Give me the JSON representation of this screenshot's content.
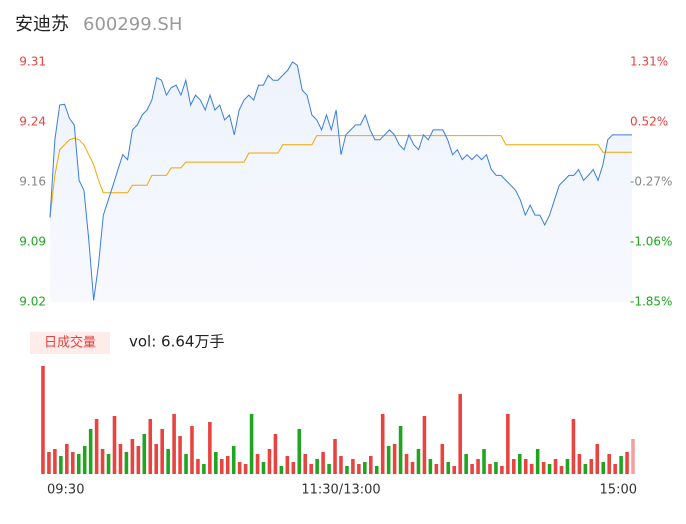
{
  "header": {
    "name": "安迪苏",
    "code": "600299.SH"
  },
  "chart_data": [
    {
      "type": "line",
      "x": [
        0,
        2,
        4,
        6,
        8,
        10,
        12,
        14,
        16,
        18,
        20,
        22,
        24,
        26,
        28,
        30,
        32,
        34,
        36,
        38,
        40,
        42,
        44,
        46,
        48,
        50,
        52,
        54,
        56,
        58,
        60,
        62,
        64,
        66,
        68,
        70,
        72,
        74,
        76,
        78,
        80,
        82,
        84,
        86,
        88,
        90,
        92,
        94,
        96,
        98,
        100,
        102,
        104,
        106,
        108,
        110,
        112,
        114,
        116,
        118,
        120,
        122,
        124,
        126,
        128,
        130,
        132,
        134,
        136,
        138,
        140,
        142,
        144,
        146,
        148,
        150,
        152,
        154,
        156,
        158,
        160,
        162,
        164,
        166,
        168,
        170,
        172,
        174,
        176,
        178,
        180,
        182,
        184,
        186,
        188,
        190,
        192,
        194,
        196,
        198,
        200,
        202,
        204,
        206,
        208,
        210,
        212,
        214,
        216,
        218,
        220,
        222,
        224,
        226,
        228,
        230,
        232,
        234,
        236,
        238,
        240
      ],
      "series": [
        {
          "color": "#3b7ddd",
          "values": [
            9.122,
            9.216,
            9.258,
            9.259,
            9.242,
            9.234,
            9.167,
            9.155,
            9.095,
            9.022,
            9.065,
            9.125,
            9.143,
            9.161,
            9.18,
            9.198,
            9.192,
            9.228,
            9.234,
            9.246,
            9.252,
            9.264,
            9.291,
            9.288,
            9.27,
            9.279,
            9.282,
            9.27,
            9.288,
            9.258,
            9.27,
            9.264,
            9.252,
            9.27,
            9.252,
            9.258,
            9.24,
            9.246,
            9.222,
            9.252,
            9.264,
            9.27,
            9.264,
            9.282,
            9.282,
            9.294,
            9.288,
            9.288,
            9.294,
            9.3,
            9.31,
            9.306,
            9.276,
            9.27,
            9.246,
            9.24,
            9.228,
            9.246,
            9.228,
            9.252,
            9.198,
            9.222,
            9.228,
            9.234,
            9.234,
            9.246,
            9.228,
            9.216,
            9.216,
            9.222,
            9.228,
            9.222,
            9.21,
            9.204,
            9.222,
            9.21,
            9.204,
            9.222,
            9.216,
            9.228,
            9.228,
            9.228,
            9.216,
            9.198,
            9.204,
            9.192,
            9.198,
            9.192,
            9.198,
            9.192,
            9.198,
            9.18,
            9.173,
            9.173,
            9.167,
            9.161,
            9.155,
            9.143,
            9.125,
            9.137,
            9.125,
            9.125,
            9.113,
            9.125,
            9.143,
            9.161,
            9.167,
            9.173,
            9.173,
            9.18,
            9.167,
            9.173,
            9.18,
            9.167,
            9.186,
            9.216,
            9.222,
            9.222,
            9.222,
            9.222,
            9.222
          ]
        },
        {
          "color": "#f0a800",
          "values": [
            9.122,
            9.173,
            9.204,
            9.21,
            9.216,
            9.218,
            9.216,
            9.21,
            9.198,
            9.186,
            9.167,
            9.152,
            9.152,
            9.152,
            9.152,
            9.152,
            9.152,
            9.161,
            9.161,
            9.161,
            9.161,
            9.173,
            9.173,
            9.173,
            9.173,
            9.182,
            9.182,
            9.182,
            9.189,
            9.189,
            9.189,
            9.189,
            9.189,
            9.189,
            9.189,
            9.189,
            9.189,
            9.189,
            9.189,
            9.189,
            9.189,
            9.2,
            9.2,
            9.2,
            9.2,
            9.2,
            9.2,
            9.2,
            9.21,
            9.21,
            9.21,
            9.21,
            9.21,
            9.21,
            9.21,
            9.221,
            9.221,
            9.221,
            9.221,
            9.221,
            9.221,
            9.221,
            9.221,
            9.221,
            9.221,
            9.221,
            9.221,
            9.221,
            9.221,
            9.221,
            9.221,
            9.221,
            9.221,
            9.221,
            9.221,
            9.221,
            9.221,
            9.221,
            9.221,
            9.221,
            9.221,
            9.221,
            9.221,
            9.221,
            9.221,
            9.221,
            9.221,
            9.221,
            9.221,
            9.221,
            9.221,
            9.221,
            9.221,
            9.221,
            9.21,
            9.21,
            9.21,
            9.21,
            9.21,
            9.21,
            9.21,
            9.21,
            9.21,
            9.21,
            9.21,
            9.21,
            9.21,
            9.21,
            9.21,
            9.21,
            9.21,
            9.21,
            9.21,
            9.21,
            9.201,
            9.201,
            9.201,
            9.201,
            9.201,
            9.201,
            9.201
          ]
        }
      ],
      "xlim": [
        0,
        240
      ],
      "xticks": [
        {
          "value": 0,
          "label": "09:30"
        },
        {
          "value": 120,
          "label": "11:30/13:00"
        },
        {
          "value": 240,
          "label": "15:00"
        }
      ],
      "ylim": [
        9.02,
        9.31
      ],
      "yticks": [
        9.31,
        {
          "value": 9.2375,
          "label": "9.24"
        },
        {
          "value": 9.165,
          "label": "9.16"
        },
        {
          "value": 9.0925,
          "label": "9.09"
        },
        9.02
      ],
      "y2lim": [
        -1.85,
        1.31
      ],
      "y2ticks": [
        {
          "value": 1.31,
          "label": "1.31%"
        },
        {
          "value": 0.52,
          "label": "0.52%"
        },
        {
          "value": -0.27,
          "label": "-0.27%"
        },
        {
          "value": -1.06,
          "label": "-1.06%"
        },
        {
          "value": -1.85,
          "label": "-1.85%"
        }
      ],
      "tick_colors": [
        "#e8433f",
        "#e8433f",
        "#888888",
        "#1fa51f",
        "#1fa51f"
      ]
    },
    {
      "type": "bar",
      "title": "日成交量",
      "annotation": "vol: 6.64万手",
      "ylim": [
        0,
        110
      ],
      "values": [
        108,
        22,
        25,
        18,
        30,
        22,
        20,
        28,
        45,
        55,
        25,
        20,
        58,
        30,
        22,
        35,
        28,
        40,
        55,
        30,
        45,
        25,
        60,
        38,
        20,
        48,
        15,
        10,
        52,
        22,
        15,
        18,
        28,
        12,
        10,
        60,
        20,
        12,
        25,
        40,
        8,
        18,
        12,
        45,
        20,
        10,
        15,
        22,
        10,
        35,
        18,
        8,
        15,
        10,
        12,
        18,
        8,
        60,
        28,
        30,
        48,
        20,
        12,
        25,
        58,
        15,
        10,
        30,
        12,
        8,
        80,
        20,
        10,
        15,
        25,
        10,
        12,
        8,
        60,
        15,
        20,
        15,
        10,
        25,
        12,
        10,
        15,
        8,
        15,
        55,
        20,
        10,
        15,
        30,
        12,
        20,
        10,
        18,
        22,
        35
      ],
      "colors": [
        "#e8433f",
        "#e8433f",
        "#e8433f",
        "#1fa51f",
        "#e8433f",
        "#e8433f",
        "#1fa51f",
        "#1fa51f",
        "#1fa51f",
        "#e8433f",
        "#e8433f",
        "#1fa51f",
        "#e8433f",
        "#e8433f",
        "#1fa51f",
        "#e8433f",
        "#e8433f",
        "#1fa51f",
        "#e8433f",
        "#e8433f",
        "#e8433f",
        "#1fa51f",
        "#e8433f",
        "#e8433f",
        "#1fa51f",
        "#e8433f",
        "#e8433f",
        "#1fa51f",
        "#e8433f",
        "#1fa51f",
        "#e8433f",
        "#e8433f",
        "#1fa51f",
        "#e8433f",
        "#e8433f",
        "#1fa51f",
        "#e8433f",
        "#1fa51f",
        "#e8433f",
        "#e8433f",
        "#1fa51f",
        "#e8433f",
        "#e8433f",
        "#1fa51f",
        "#e8433f",
        "#e8433f",
        "#1fa51f",
        "#e8433f",
        "#1fa51f",
        "#e8433f",
        "#e8433f",
        "#1fa51f",
        "#e8433f",
        "#e8433f",
        "#1fa51f",
        "#e8433f",
        "#1fa51f",
        "#e8433f",
        "#1fa51f",
        "#e8433f",
        "#1fa51f",
        "#e8433f",
        "#e8433f",
        "#1fa51f",
        "#e8433f",
        "#1fa51f",
        "#e8433f",
        "#e8433f",
        "#1fa51f",
        "#e8433f",
        "#e8433f",
        "#1fa51f",
        "#e8433f",
        "#e8433f",
        "#1fa51f",
        "#e8433f",
        "#1fa51f",
        "#e8433f",
        "#e8433f",
        "#e8433f",
        "#1fa51f",
        "#e8433f",
        "#e8433f",
        "#1fa51f",
        "#e8433f",
        "#1fa51f",
        "#e8433f",
        "#e8433f",
        "#1fa51f",
        "#e8433f",
        "#e8433f",
        "#1fa51f",
        "#e8433f",
        "#e8433f",
        "#1fa51f",
        "#e8433f",
        "#e8433f",
        "#1fa51f",
        "#e8433f",
        "#f4a0a0"
      ]
    }
  ]
}
